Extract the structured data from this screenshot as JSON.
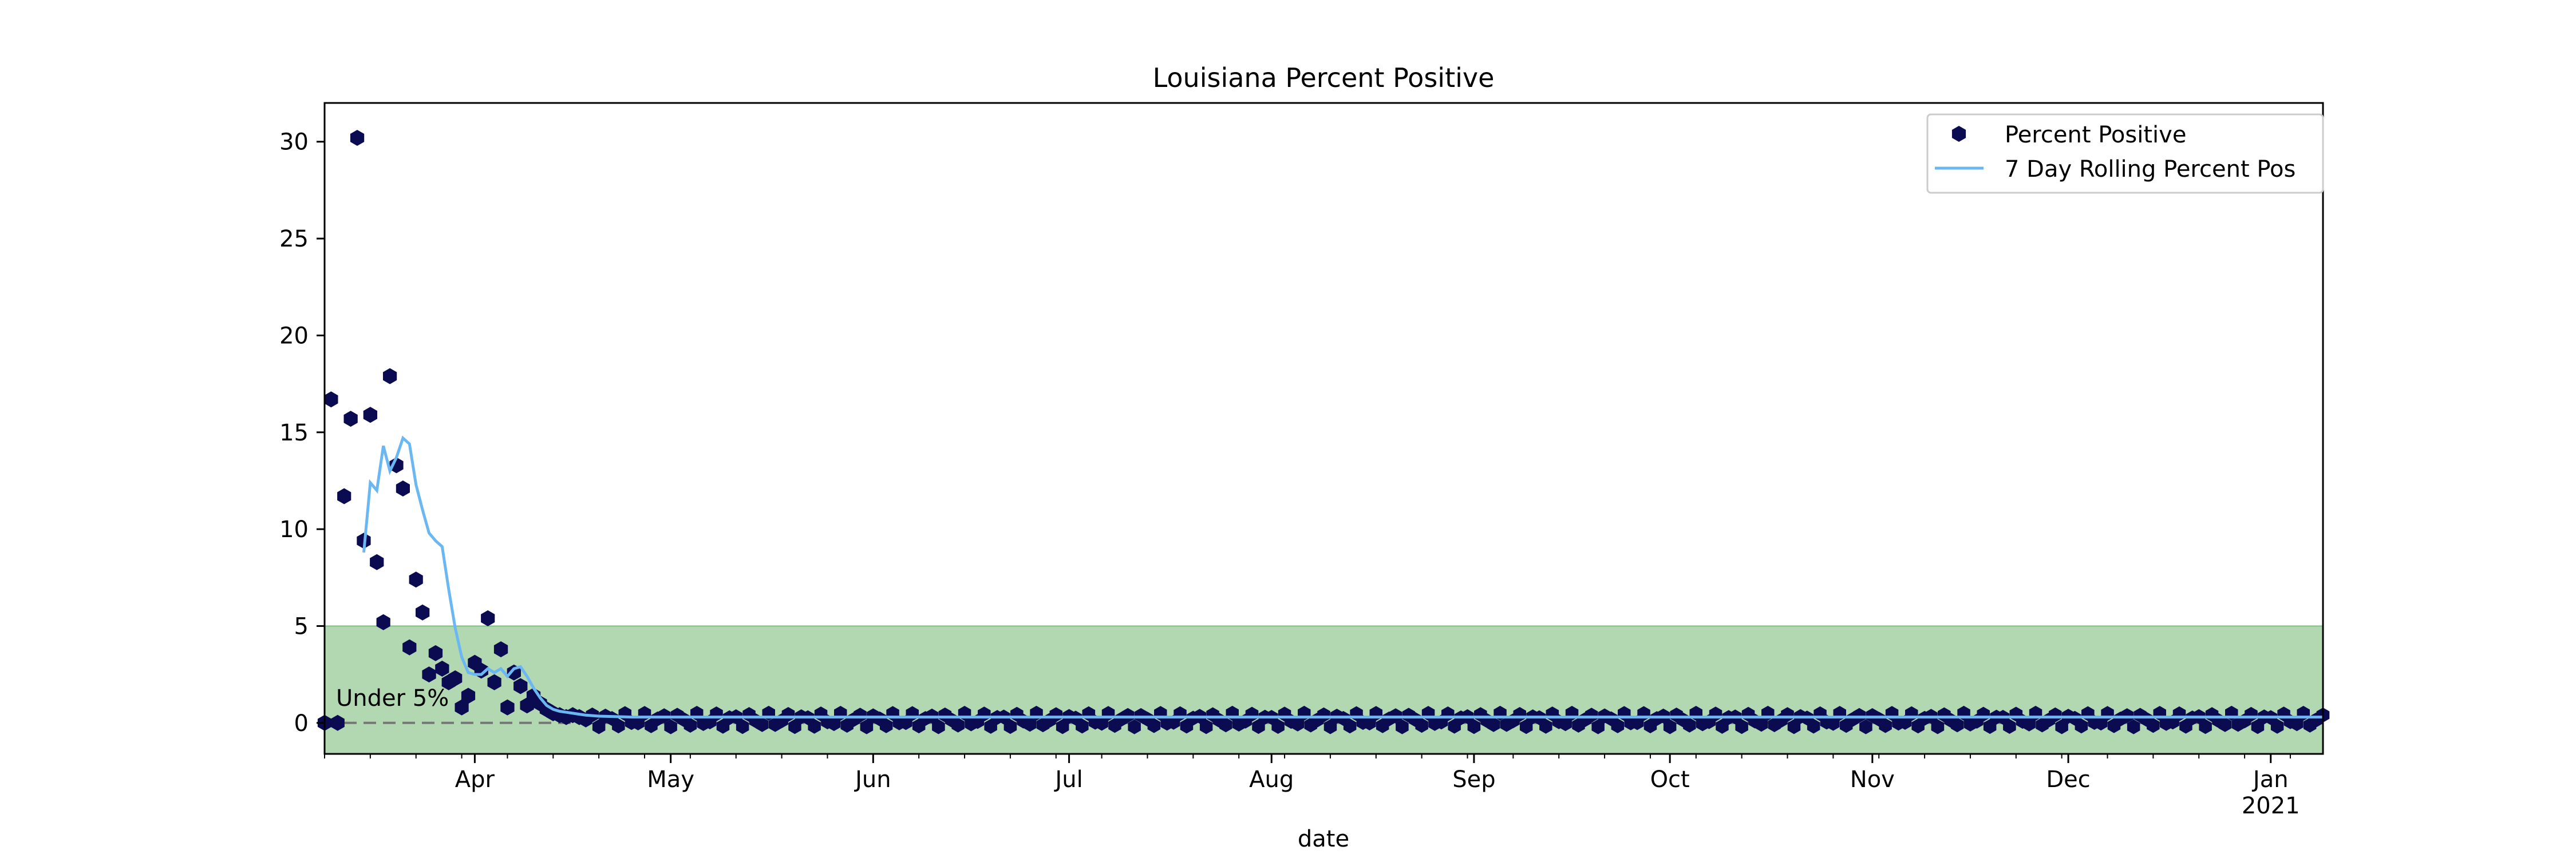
{
  "chart_data": {
    "type": "scatter",
    "title": "Louisiana Percent Positive",
    "xlabel": "date",
    "ylabel": "",
    "x_range": [
      "2020-03-09",
      "2021-01-09"
    ],
    "ylim": [
      -1.6,
      32
    ],
    "y_ticks": [
      0,
      5,
      10,
      15,
      20,
      25,
      30
    ],
    "x_ticks": [
      {
        "date": "2020-04-01",
        "label": "Apr"
      },
      {
        "date": "2020-05-01",
        "label": "May"
      },
      {
        "date": "2020-06-01",
        "label": "Jun"
      },
      {
        "date": "2020-07-01",
        "label": "Jul"
      },
      {
        "date": "2020-08-01",
        "label": "Aug"
      },
      {
        "date": "2020-09-01",
        "label": "Sep"
      },
      {
        "date": "2020-10-01",
        "label": "Oct"
      },
      {
        "date": "2020-11-01",
        "label": "Nov"
      },
      {
        "date": "2020-12-01",
        "label": "Dec"
      },
      {
        "date": "2021-01-01",
        "label": "Jan\n2021"
      }
    ],
    "threshold": {
      "value": 5,
      "label": "Under 5%",
      "band_color": "#b2d8b2",
      "band_edge": "#7fbf7f",
      "line_color": "#777777"
    },
    "legend": {
      "position": "upper right",
      "entries": [
        "Percent Positive",
        "7 Day Rolling Percent Pos"
      ]
    },
    "grid": false,
    "colors": {
      "points": "#0b0b52",
      "rolling": "#6bb7f2"
    },
    "series": [
      {
        "name": "Percent Positive",
        "kind": "points",
        "x": [
          "2020-03-09",
          "2020-03-10",
          "2020-03-11",
          "2020-03-12",
          "2020-03-13",
          "2020-03-14",
          "2020-03-15",
          "2020-03-16",
          "2020-03-17",
          "2020-03-18",
          "2020-03-19",
          "2020-03-20",
          "2020-03-21",
          "2020-03-22",
          "2020-03-23",
          "2020-03-24",
          "2020-03-25",
          "2020-03-26",
          "2020-03-27",
          "2020-03-28",
          "2020-03-29",
          "2020-03-30",
          "2020-03-31",
          "2020-04-01",
          "2020-04-02",
          "2020-04-03",
          "2020-04-04",
          "2020-04-05",
          "2020-04-06",
          "2020-04-07",
          "2020-04-08",
          "2020-04-09",
          "2020-04-10",
          "2020-04-11",
          "2020-04-12",
          "2020-04-13",
          "2020-04-14",
          "2020-04-15",
          "2020-04-16",
          "2020-04-17"
        ],
        "y": [
          0,
          16.7,
          0,
          11.7,
          15.7,
          30.2,
          9.4,
          15.9,
          8.3,
          5.2,
          17.9,
          13.3,
          12.1,
          3.9,
          7.4,
          5.7,
          2.5,
          3.6,
          2.8,
          2.1,
          2.3,
          0.8,
          1.4,
          3.1,
          2.7,
          5.4,
          2.1,
          3.8,
          0.8,
          2.6,
          1.9,
          0.9,
          1.4,
          1.0,
          0.7,
          0.5,
          0.4,
          0.3,
          0.4,
          0.3
        ],
        "tail": {
          "from": "2020-04-18",
          "to": "2021-01-09",
          "value_range": [
            -0.2,
            0.5
          ],
          "note": "near-zero daily points"
        }
      },
      {
        "name": "7 Day Rolling Percent Pos",
        "kind": "line",
        "x": [
          "2020-03-15",
          "2020-03-16",
          "2020-03-17",
          "2020-03-18",
          "2020-03-19",
          "2020-03-20",
          "2020-03-21",
          "2020-03-22",
          "2020-03-23",
          "2020-03-24",
          "2020-03-25",
          "2020-03-26",
          "2020-03-27",
          "2020-03-28",
          "2020-03-29",
          "2020-03-30",
          "2020-03-31",
          "2020-04-01",
          "2020-04-02",
          "2020-04-03",
          "2020-04-04",
          "2020-04-05",
          "2020-04-06",
          "2020-04-07",
          "2020-04-08",
          "2020-04-09",
          "2020-04-10",
          "2020-04-11",
          "2020-04-12",
          "2020-04-13",
          "2020-04-14",
          "2020-04-15",
          "2020-04-16",
          "2020-04-17",
          "2020-04-18",
          "2020-04-20",
          "2020-04-25",
          "2020-05-01",
          "2020-05-10",
          "2020-06-01",
          "2020-07-01",
          "2020-08-01",
          "2020-09-01",
          "2020-10-01",
          "2020-11-01",
          "2020-12-01",
          "2021-01-01",
          "2021-01-09"
        ],
        "y": [
          8.8,
          12.4,
          12.0,
          14.3,
          13.0,
          13.7,
          14.7,
          14.4,
          12.3,
          11.0,
          9.8,
          9.4,
          9.1,
          6.9,
          4.9,
          3.4,
          2.6,
          2.5,
          2.5,
          2.8,
          2.6,
          2.8,
          2.4,
          2.8,
          2.9,
          2.4,
          1.8,
          1.3,
          0.9,
          0.7,
          0.6,
          0.55,
          0.5,
          0.45,
          0.4,
          0.35,
          0.3,
          0.3,
          0.3,
          0.3,
          0.3,
          0.3,
          0.3,
          0.3,
          0.3,
          0.3,
          0.3,
          0.3
        ]
      }
    ]
  }
}
